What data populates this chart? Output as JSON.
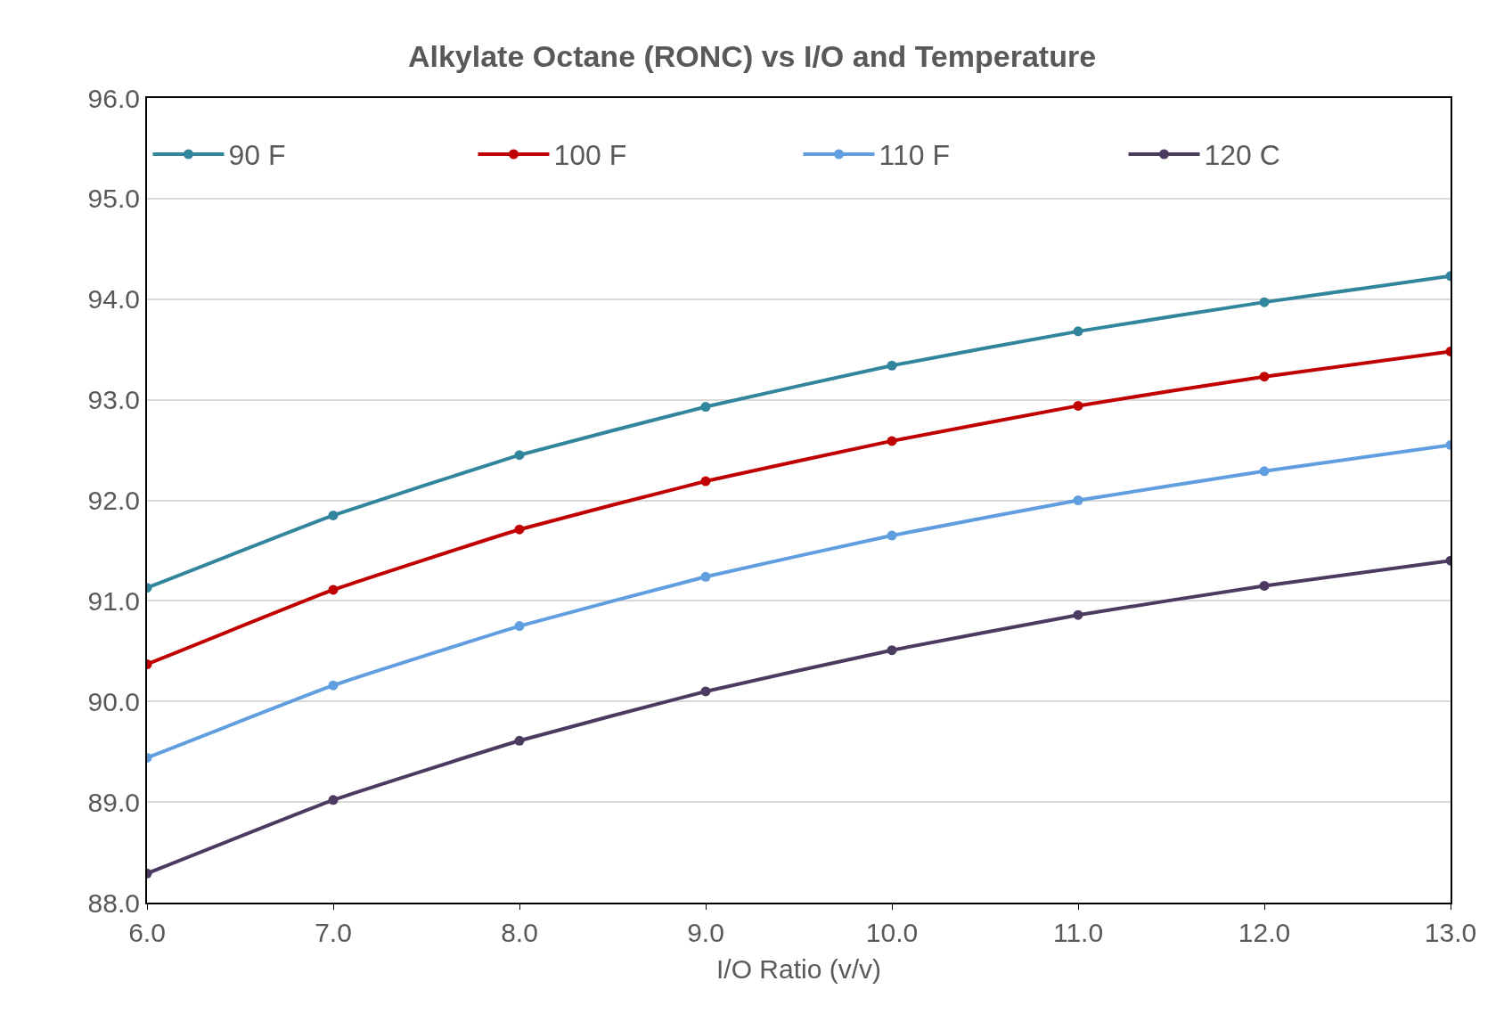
{
  "chart_data": {
    "type": "line",
    "title": "Alkylate Octane (RONC) vs I/O and Temperature",
    "xlabel": "I/O Ratio (v/v)",
    "x": [
      6,
      7,
      8,
      9,
      10,
      11,
      12,
      13
    ],
    "series": [
      {
        "name": "90 F",
        "color": "#31859c",
        "values": [
          91.13,
          91.85,
          92.45,
          92.93,
          93.34,
          93.68,
          93.97,
          94.23
        ]
      },
      {
        "name": "100 F",
        "color": "#c00000",
        "values": [
          90.37,
          91.11,
          91.71,
          92.19,
          92.59,
          92.94,
          93.23,
          93.48
        ]
      },
      {
        "name": "110 F",
        "color": "#609ee0",
        "values": [
          89.44,
          90.16,
          90.75,
          91.24,
          91.65,
          92.0,
          92.29,
          92.55
        ]
      },
      {
        "name": "120 C",
        "color": "#4b3b60",
        "values": [
          88.29,
          89.02,
          89.61,
          90.1,
          90.51,
          90.86,
          91.15,
          91.4
        ]
      }
    ],
    "xlim": [
      6,
      13
    ],
    "xticks": [
      {
        "value": 6,
        "label": "6.0"
      },
      {
        "value": 7,
        "label": "7.0"
      },
      {
        "value": 8,
        "label": "8.0"
      },
      {
        "value": 9,
        "label": "9.0"
      },
      {
        "value": 10,
        "label": "10.0"
      },
      {
        "value": 11,
        "label": "11.0"
      },
      {
        "value": 12,
        "label": "12.0"
      },
      {
        "value": 13,
        "label": "13.0"
      }
    ],
    "ylim": [
      88,
      96
    ],
    "yticks": [
      {
        "value": 88,
        "label": "88.0"
      },
      {
        "value": 89,
        "label": "89.0"
      },
      {
        "value": 90,
        "label": "90.0"
      },
      {
        "value": 91,
        "label": "91.0"
      },
      {
        "value": 92,
        "label": "92.0"
      },
      {
        "value": 93,
        "label": "93.0"
      },
      {
        "value": 94,
        "label": "94.0"
      },
      {
        "value": 95,
        "label": "95.0"
      },
      {
        "value": 96,
        "label": "96.0"
      }
    ],
    "grid": "y",
    "legend": "top",
    "marker": "circle",
    "line_style": "solid"
  }
}
